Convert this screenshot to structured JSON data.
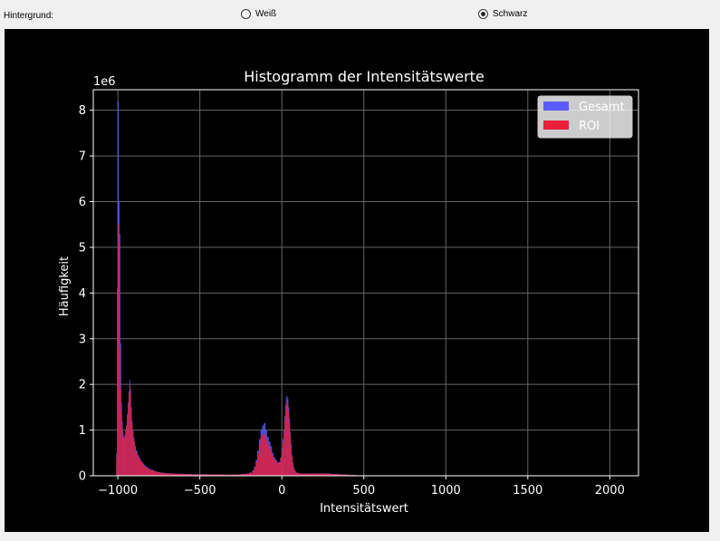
{
  "toolbar": {
    "background_label": "Hintergrund:",
    "options": [
      {
        "label": "Weiß",
        "selected": false
      },
      {
        "label": "Schwarz",
        "selected": true
      }
    ]
  },
  "chart_data": {
    "type": "bar",
    "title": "Histogramm der Intensitätswerte",
    "xlabel": "Intensitätswert",
    "ylabel": "Häufigkeit",
    "y_offset_label": "1e6",
    "xlim": [
      -1150,
      2175
    ],
    "ylim": [
      0,
      8.45
    ],
    "xticks": [
      -1000,
      -500,
      0,
      500,
      1000,
      1500,
      2000
    ],
    "xtick_labels": [
      "−1000",
      "−500",
      "0",
      "500",
      "1000",
      "1500",
      "2000"
    ],
    "yticks": [
      0,
      1,
      2,
      3,
      4,
      5,
      6,
      7,
      8
    ],
    "ytick_labels": [
      "0",
      "1",
      "2",
      "3",
      "4",
      "5",
      "6",
      "7",
      "8"
    ],
    "grid": true,
    "legend_position": "top-right",
    "colors": {
      "background": "#000000",
      "gesamt": "#5b5bff",
      "roi": "#e8203a",
      "overlap": "#b0103a"
    },
    "series": [
      {
        "name": "Gesamt",
        "x": [
          -1010,
          -1005,
          -1000,
          -995,
          -990,
          -985,
          -980,
          -975,
          -970,
          -965,
          -960,
          -955,
          -950,
          -945,
          -940,
          -935,
          -930,
          -925,
          -920,
          -915,
          -910,
          -905,
          -900,
          -895,
          -890,
          -880,
          -870,
          -860,
          -850,
          -840,
          -830,
          -820,
          -810,
          -800,
          -780,
          -760,
          -740,
          -720,
          -700,
          -680,
          -650,
          -600,
          -550,
          -500,
          -450,
          -400,
          -350,
          -300,
          -250,
          -220,
          -200,
          -180,
          -170,
          -160,
          -150,
          -140,
          -130,
          -120,
          -110,
          -100,
          -90,
          -80,
          -70,
          -60,
          -50,
          -40,
          -30,
          -20,
          -10,
          0,
          5,
          10,
          15,
          20,
          25,
          30,
          35,
          40,
          45,
          50,
          55,
          60,
          65,
          70,
          75,
          80,
          85,
          90,
          95,
          100,
          110,
          120,
          140,
          160,
          180,
          200,
          250,
          300,
          350,
          400,
          450,
          500,
          550,
          600,
          650,
          700
        ],
        "values": [
          0.5,
          4.1,
          8.2,
          6.0,
          5.3,
          2.9,
          1.6,
          1.2,
          0.95,
          0.85,
          0.9,
          1.0,
          1.1,
          1.35,
          1.6,
          1.85,
          2.1,
          1.9,
          1.5,
          1.2,
          1.0,
          0.85,
          0.75,
          0.65,
          0.55,
          0.45,
          0.38,
          0.32,
          0.27,
          0.23,
          0.2,
          0.17,
          0.15,
          0.13,
          0.1,
          0.08,
          0.07,
          0.06,
          0.055,
          0.05,
          0.045,
          0.04,
          0.035,
          0.035,
          0.03,
          0.03,
          0.025,
          0.03,
          0.04,
          0.05,
          0.07,
          0.12,
          0.2,
          0.35,
          0.55,
          0.8,
          1.0,
          1.1,
          1.15,
          1.0,
          0.85,
          0.75,
          0.65,
          0.5,
          0.4,
          0.35,
          0.3,
          0.3,
          0.4,
          0.6,
          0.8,
          1.0,
          1.3,
          1.55,
          1.72,
          1.75,
          1.68,
          1.5,
          1.25,
          0.95,
          0.7,
          0.45,
          0.3,
          0.2,
          0.14,
          0.1,
          0.08,
          0.07,
          0.06,
          0.06,
          0.05,
          0.05,
          0.05,
          0.05,
          0.05,
          0.05,
          0.05,
          0.04,
          0.03,
          0.02,
          0.01,
          0.005,
          0.002,
          0.001,
          0.0005,
          0.0
        ]
      },
      {
        "name": "ROI",
        "x": [
          -1010,
          -1005,
          -1000,
          -995,
          -990,
          -985,
          -980,
          -975,
          -970,
          -965,
          -960,
          -955,
          -950,
          -945,
          -940,
          -935,
          -930,
          -925,
          -920,
          -915,
          -910,
          -905,
          -900,
          -895,
          -890,
          -880,
          -870,
          -860,
          -850,
          -840,
          -830,
          -820,
          -810,
          -800,
          -780,
          -760,
          -740,
          -720,
          -700,
          -680,
          -650,
          -600,
          -550,
          -500,
          -450,
          -400,
          -350,
          -300,
          -250,
          -220,
          -200,
          -180,
          -170,
          -160,
          -150,
          -140,
          -130,
          -120,
          -110,
          -100,
          -90,
          -80,
          -70,
          -60,
          -50,
          -40,
          -30,
          -20,
          -10,
          0,
          5,
          10,
          15,
          20,
          25,
          30,
          35,
          40,
          45,
          50,
          55,
          60,
          65,
          70,
          75,
          80,
          85,
          90,
          95,
          100,
          110,
          120,
          140,
          160,
          180,
          200,
          250,
          300,
          350,
          400,
          450,
          500,
          550,
          600,
          650,
          700
        ],
        "values": [
          0.4,
          4.1,
          5.5,
          5.1,
          2.8,
          1.9,
          1.4,
          1.05,
          0.85,
          0.82,
          0.88,
          0.98,
          1.1,
          1.3,
          1.55,
          1.8,
          2.0,
          1.85,
          1.45,
          1.15,
          0.95,
          0.8,
          0.7,
          0.6,
          0.5,
          0.42,
          0.35,
          0.3,
          0.25,
          0.21,
          0.18,
          0.16,
          0.14,
          0.12,
          0.09,
          0.075,
          0.065,
          0.055,
          0.05,
          0.045,
          0.04,
          0.035,
          0.03,
          0.03,
          0.028,
          0.028,
          0.023,
          0.028,
          0.035,
          0.045,
          0.065,
          0.11,
          0.18,
          0.3,
          0.48,
          0.68,
          0.85,
          0.92,
          0.9,
          0.8,
          0.7,
          0.62,
          0.55,
          0.45,
          0.36,
          0.32,
          0.28,
          0.28,
          0.37,
          0.55,
          0.72,
          0.92,
          1.2,
          1.45,
          1.6,
          1.62,
          1.55,
          1.38,
          1.15,
          0.88,
          0.64,
          0.42,
          0.28,
          0.18,
          0.13,
          0.09,
          0.075,
          0.065,
          0.055,
          0.055,
          0.045,
          0.045,
          0.045,
          0.045,
          0.045,
          0.045,
          0.045,
          0.035,
          0.025,
          0.018,
          0.009,
          0.004,
          0.002,
          0.001,
          0.0004,
          0.0
        ]
      }
    ]
  }
}
